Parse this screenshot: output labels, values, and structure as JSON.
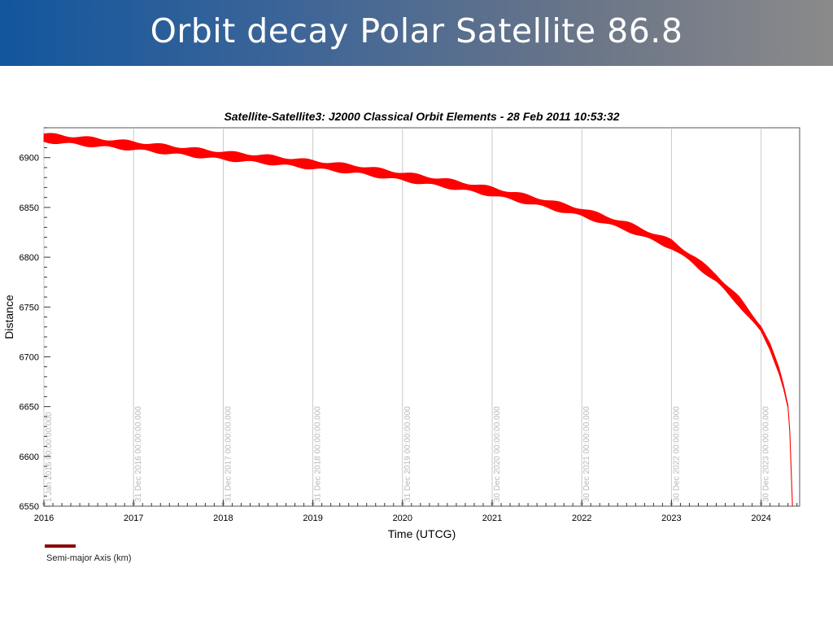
{
  "slide": {
    "title": "Orbit decay Polar Satellite 86.8"
  },
  "colors": {
    "series": "#ff0000",
    "legend": "#8b0000",
    "banner_start": "#12569e",
    "banner_end": "#8a8a8a"
  },
  "chart_data": {
    "type": "line",
    "title": "Satellite-Satellite3:  J2000 Classical Orbit Elements - 28 Feb 2011 10:53:32",
    "xlabel": "Time (UTCG)",
    "ylabel": "Distance",
    "xlim": [
      2016.0,
      2024.43
    ],
    "ylim": [
      6550,
      6930
    ],
    "x_ticks": [
      "2016",
      "2017",
      "2018",
      "2019",
      "2020",
      "2021",
      "2022",
      "2023",
      "2024"
    ],
    "y_ticks": [
      6550,
      6600,
      6650,
      6700,
      6750,
      6800,
      6850,
      6900
    ],
    "vertical_markers": [
      {
        "x": 2016.0,
        "label": "1 Jan 2016 00:00:00.000"
      },
      {
        "x": 2017.0,
        "label": "31 Dec 2016 00:00:00.000"
      },
      {
        "x": 2018.0,
        "label": "31 Dec 2017 00:00:00.000"
      },
      {
        "x": 2019.0,
        "label": "31 Dec 2018 00:00:00.000"
      },
      {
        "x": 2020.0,
        "label": "31 Dec 2019 00:00:00.000"
      },
      {
        "x": 2021.0,
        "label": "30 Dec 2020 00:00:00.000"
      },
      {
        "x": 2022.0,
        "label": "30 Dec 2021 00:00:00.000"
      },
      {
        "x": 2023.0,
        "label": "30 Dec 2022 00:00:00.000"
      },
      {
        "x": 2024.0,
        "label": "30 Dec 2023 00:00:00.000"
      }
    ],
    "legend": {
      "position": "bottom-left",
      "entries": [
        "Semi-major Axis (km)"
      ]
    },
    "grid": "vertical-at-markers",
    "series": [
      {
        "name": "Semi-major Axis (km)",
        "x": [
          2016.0,
          2016.5,
          2017.0,
          2017.5,
          2018.0,
          2018.5,
          2019.0,
          2019.5,
          2020.0,
          2020.5,
          2021.0,
          2021.5,
          2022.0,
          2022.5,
          2023.0,
          2023.25,
          2023.5,
          2023.75,
          2024.0,
          2024.1,
          2024.2,
          2024.25,
          2024.3,
          2024.32,
          2024.35
        ],
        "y": [
          6920,
          6916,
          6912,
          6907,
          6902,
          6898,
          6893,
          6888,
          6881,
          6874,
          6866,
          6856,
          6845,
          6831,
          6813,
          6797,
          6779,
          6756,
          6728,
          6710,
          6686,
          6670,
          6650,
          6625,
          6550
        ],
        "band": [
          10,
          10,
          10,
          10,
          10,
          10,
          10,
          10,
          10,
          10,
          10,
          10,
          10,
          10,
          10,
          10,
          10,
          10,
          8,
          7,
          6,
          5,
          4,
          2,
          0
        ]
      }
    ]
  }
}
